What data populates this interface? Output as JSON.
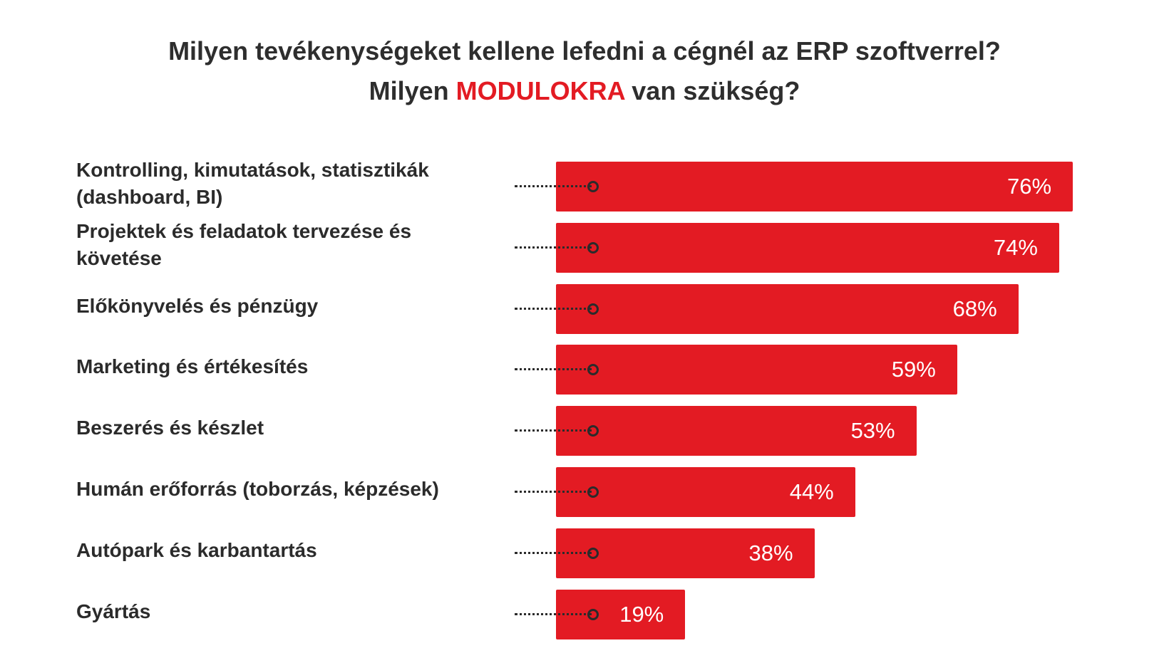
{
  "title": {
    "line1": "Milyen tevékenységeket kellene lefedni a cégnél az ERP szoftverrel?",
    "line2_prefix": "Milyen ",
    "line2_highlight": "MODULOKRA",
    "line2_suffix": " van szükség?"
  },
  "colors": {
    "bar": "#e31b23",
    "highlight": "#e31b23",
    "text": "#2b2b2b"
  },
  "chart_data": {
    "type": "bar",
    "orientation": "horizontal",
    "categories": [
      "Kontrolling, kimutatások, statisztikák\n(dashboard, BI)",
      "Projektek és feladatok tervezése és\nkövetése",
      "Előkönyvelés és pénzügy",
      "Marketing és értékesítés",
      "Beszerés és készlet",
      "Humán erőforrás (toborzás, képzések)",
      "Autópark és karbantartás",
      "Gyártás"
    ],
    "values": [
      76,
      74,
      68,
      59,
      53,
      44,
      38,
      19
    ],
    "value_labels": [
      "76%",
      "74%",
      "68%",
      "59%",
      "53%",
      "44%",
      "38%",
      "19%"
    ],
    "unit": "%"
  }
}
